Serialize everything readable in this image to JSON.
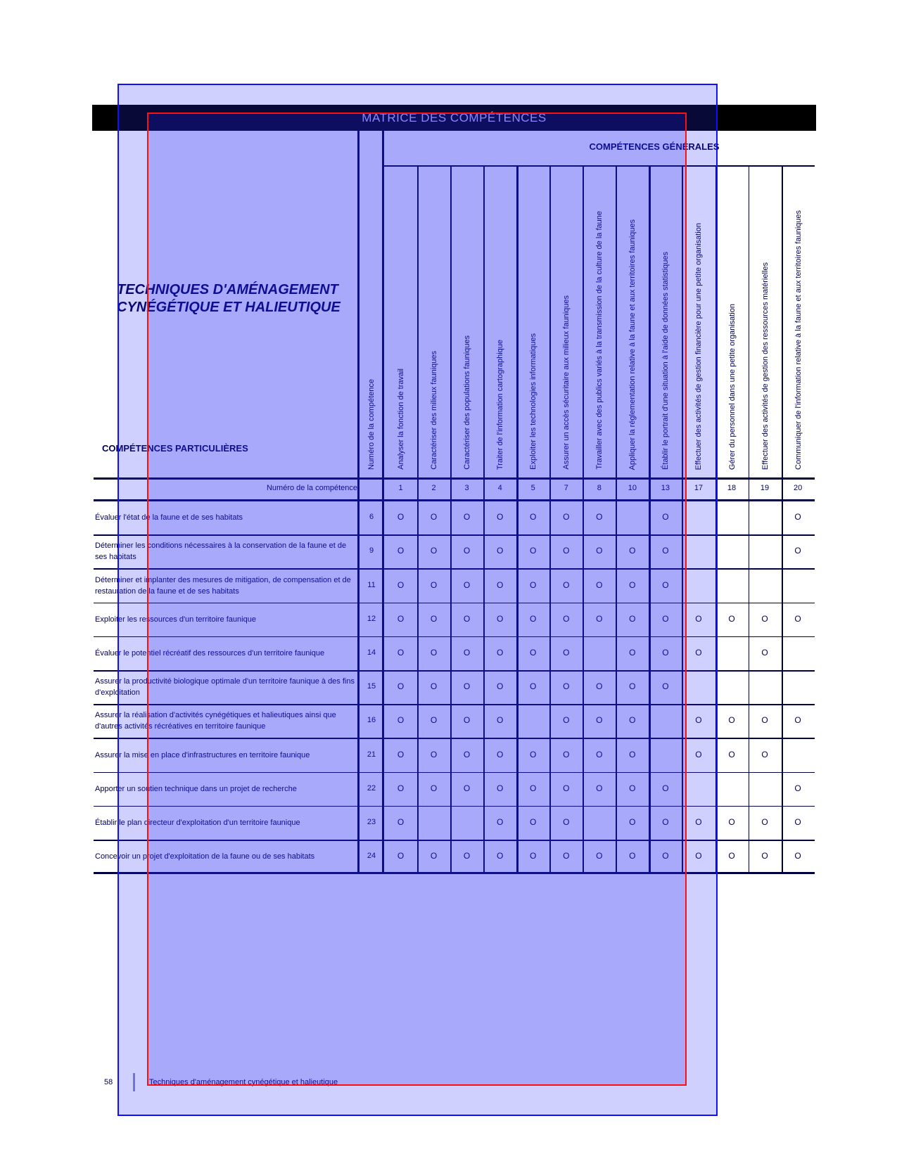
{
  "header": {
    "title": "MATRICE DES COMPÉTENCES",
    "general_title": "COMPÉTENCES GÉNÉRALES"
  },
  "program_title": [
    "TECHNIQUES D'AMÉNAGEMENT",
    "CYNÉGÉTIQUE ET HALIEUTIQUE"
  ],
  "particular_title": "COMPÉTENCES PARTICULIÈRES",
  "number_column_label": "Numéro de la compétence",
  "number_row_label": "Numéro de la compétence",
  "mark_symbol": "O",
  "columns": [
    {
      "number": "1",
      "label": "Analyser la fonction de travail"
    },
    {
      "number": "2",
      "label": "Caractériser des milieux fauniques"
    },
    {
      "number": "3",
      "label": "Caractériser des populations fauniques"
    },
    {
      "number": "4",
      "label": "Traiter de l'information cartographique"
    },
    {
      "number": "5",
      "label": "Exploiter les technologies informatiques"
    },
    {
      "number": "7",
      "label": "Assurer un accès sécuritaire aux milieux fauniques"
    },
    {
      "number": "8",
      "label": "Travailler avec des publics variés à la transmission de la culture de la faune"
    },
    {
      "number": "10",
      "label": "Appliquer la réglementation relative à la faune et aux territoires fauniques"
    },
    {
      "number": "13",
      "label": "Établir le portrait d'une situation à l'aide de données statistiques"
    },
    {
      "number": "17",
      "label": "Effectuer des activités de gestion financière pour une petite organisation"
    },
    {
      "number": "18",
      "label": "Gérer du personnel dans une petite organisation"
    },
    {
      "number": "19",
      "label": "Effectuer des activités de gestion des ressources matérielles"
    },
    {
      "number": "20",
      "label": "Communiquer de l'information relative à la faune et aux territoires fauniques"
    }
  ],
  "rows": [
    {
      "number": "6",
      "label": "Évaluer l'état de la faune et de ses habitats",
      "marks": [
        "1",
        "2",
        "3",
        "4",
        "5",
        "7",
        "8",
        "13",
        "20"
      ]
    },
    {
      "number": "9",
      "label": "Déterminer les conditions nécessaires à la conservation de la faune et de ses habitats",
      "marks": [
        "1",
        "2",
        "3",
        "4",
        "5",
        "7",
        "8",
        "10",
        "13",
        "20"
      ]
    },
    {
      "number": "11",
      "label": "Déterminer et implanter des mesures de mitigation, de compensation et de restauration de la faune et de ses habitats",
      "marks": [
        "1",
        "2",
        "3",
        "4",
        "5",
        "7",
        "8",
        "10",
        "13"
      ]
    },
    {
      "number": "12",
      "label": "Exploiter les ressources d'un territoire faunique",
      "marks": [
        "1",
        "2",
        "3",
        "4",
        "5",
        "7",
        "8",
        "10",
        "13",
        "17",
        "18",
        "19",
        "20"
      ]
    },
    {
      "number": "14",
      "label": "Évaluer le potentiel récréatif des ressources d'un territoire faunique",
      "marks": [
        "1",
        "2",
        "3",
        "4",
        "5",
        "7",
        "10",
        "13",
        "17",
        "19"
      ]
    },
    {
      "number": "15",
      "label": "Assurer la productivité biologique optimale d'un territoire faunique à des fins d'exploitation",
      "marks": [
        "1",
        "2",
        "3",
        "4",
        "5",
        "7",
        "8",
        "10",
        "13"
      ]
    },
    {
      "number": "16",
      "label": "Assurer la réalisation d'activités cynégétiques et halieutiques ainsi que d'autres activités récréatives en territoire faunique",
      "marks": [
        "1",
        "2",
        "3",
        "4",
        "7",
        "8",
        "10",
        "17",
        "18",
        "19",
        "20"
      ]
    },
    {
      "number": "21",
      "label": "Assurer la mise en place d'infrastructures en territoire faunique",
      "marks": [
        "1",
        "2",
        "3",
        "4",
        "5",
        "7",
        "8",
        "10",
        "17",
        "18",
        "19"
      ]
    },
    {
      "number": "22",
      "label": "Apporter un soutien technique dans un projet de recherche",
      "marks": [
        "1",
        "2",
        "3",
        "4",
        "5",
        "7",
        "8",
        "10",
        "13",
        "20"
      ]
    },
    {
      "number": "23",
      "label": "Établir le plan directeur d'exploitation d'un territoire faunique",
      "marks": [
        "1",
        "4",
        "5",
        "7",
        "10",
        "13",
        "17",
        "18",
        "19",
        "20"
      ]
    },
    {
      "number": "24",
      "label": "Concevoir un projet d'exploitation de la faune ou de ses habitats",
      "marks": [
        "1",
        "2",
        "3",
        "4",
        "5",
        "7",
        "8",
        "10",
        "13",
        "17",
        "18",
        "19",
        "20"
      ]
    }
  ],
  "footer": {
    "page": "58",
    "text": "Techniques d'aménagement cynégétique et halieutique"
  },
  "colors": {
    "title_bar": "#000000",
    "text": "#000050",
    "overlay_outer": "#1010ff",
    "overlay_inner": "#ff1010"
  }
}
